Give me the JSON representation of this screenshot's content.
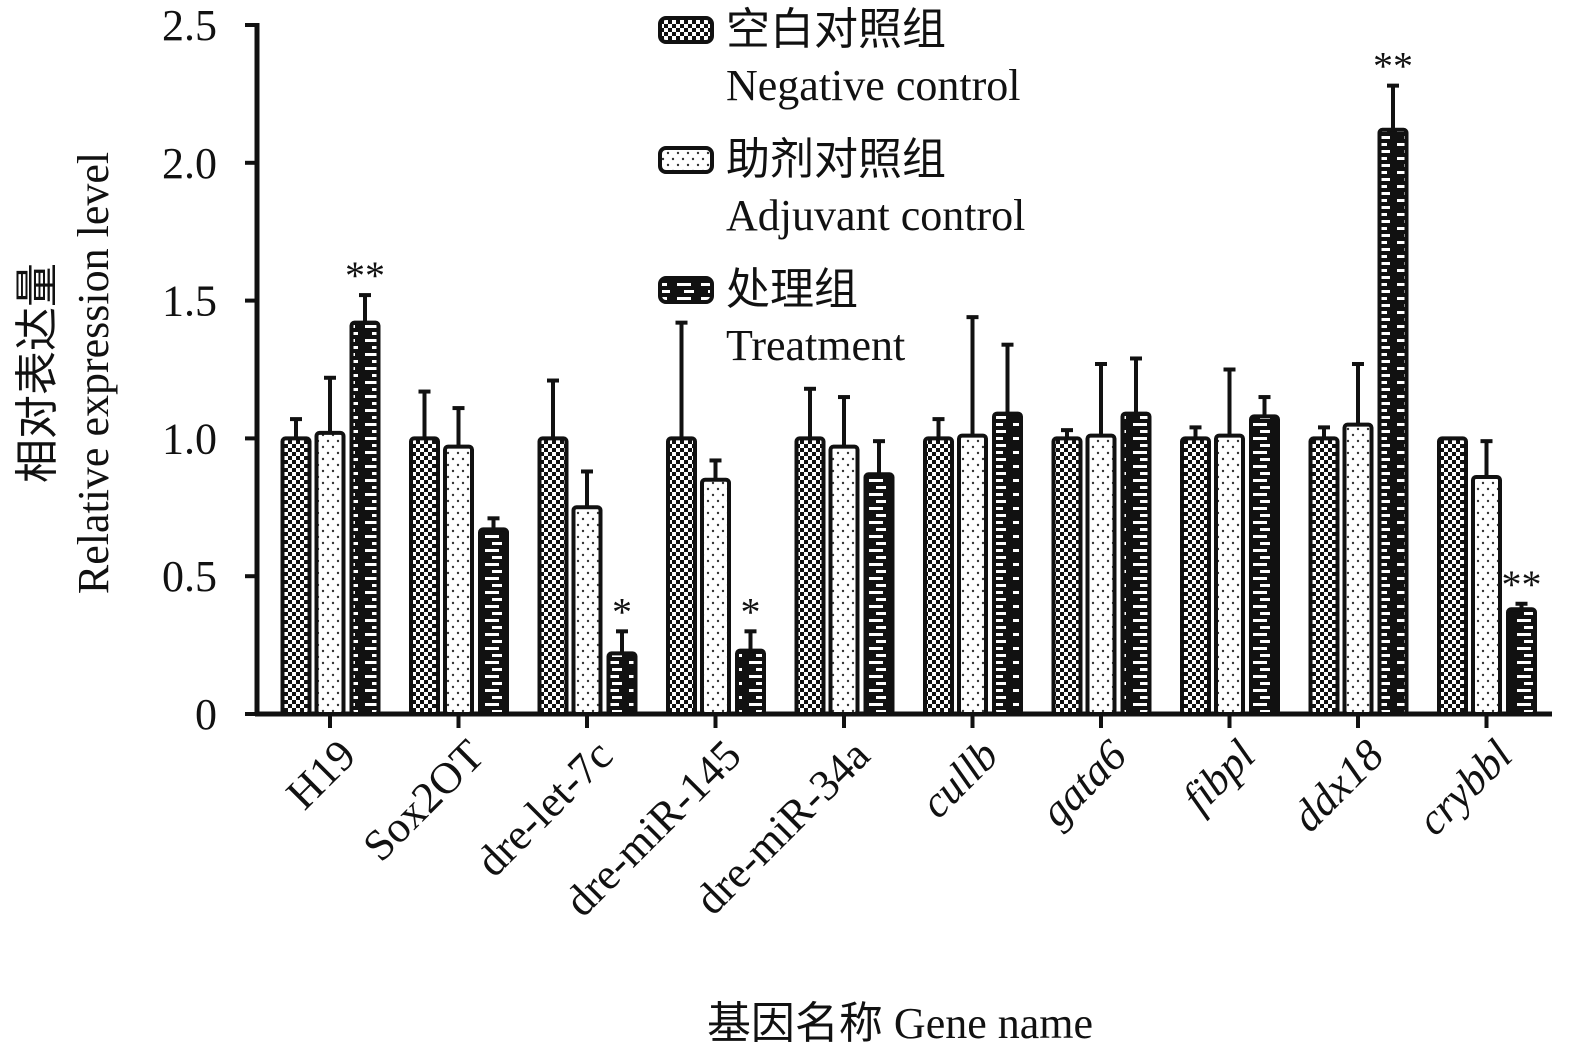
{
  "chart_data": {
    "type": "bar",
    "xlabel": "基因名称 Gene name",
    "ylabel_cn": "相对表达量",
    "ylabel_en": "Relative expression level",
    "ylim": [
      0,
      2.5
    ],
    "yticks": [
      "0",
      "0.5",
      "1.0",
      "1.5",
      "2.0",
      "2.5"
    ],
    "ytick_values": [
      0,
      0.5,
      1.0,
      1.5,
      2.0,
      2.5
    ],
    "legend_placement": "top-center",
    "categories": [
      "H19",
      "Sox2OT",
      "dre-let-7c",
      "dre-miR-145",
      "dre-miR-34a",
      "cullb",
      "gata6",
      "fibpl",
      "ddx18",
      "crybbl"
    ],
    "italic_categories": [
      false,
      false,
      false,
      false,
      false,
      true,
      true,
      true,
      true,
      true
    ],
    "series": [
      {
        "name_cn": "空白对照组",
        "name_en": "Negative control",
        "pattern": "checker",
        "values": [
          1.0,
          1.0,
          1.0,
          1.0,
          1.0,
          1.0,
          1.0,
          1.0,
          1.0,
          1.0
        ],
        "errors": [
          0.07,
          0.17,
          0.21,
          0.42,
          0.18,
          0.07,
          0.03,
          0.04,
          0.04,
          0.0
        ],
        "significance": [
          "",
          "",
          "",
          "",
          "",
          "",
          "",
          "",
          "",
          ""
        ]
      },
      {
        "name_cn": "助剂对照组",
        "name_en": "Adjuvant control",
        "pattern": "dotted",
        "values": [
          1.02,
          0.97,
          0.75,
          0.85,
          0.97,
          1.01,
          1.01,
          1.01,
          1.05,
          0.86
        ],
        "errors": [
          0.2,
          0.14,
          0.13,
          0.07,
          0.18,
          0.43,
          0.26,
          0.24,
          0.22,
          0.13
        ],
        "significance": [
          "",
          "",
          "",
          "",
          "",
          "",
          "",
          "",
          "",
          ""
        ]
      },
      {
        "name_cn": "处理组",
        "name_en": "Treatment",
        "pattern": "dashed",
        "values": [
          1.42,
          0.67,
          0.22,
          0.23,
          0.87,
          1.09,
          1.09,
          1.08,
          2.12,
          0.38
        ],
        "errors": [
          0.1,
          0.04,
          0.08,
          0.07,
          0.12,
          0.25,
          0.2,
          0.07,
          0.16,
          0.02
        ],
        "significance": [
          "**",
          "",
          "*",
          "*",
          "",
          "",
          "",
          "",
          "**",
          "**"
        ]
      }
    ]
  }
}
